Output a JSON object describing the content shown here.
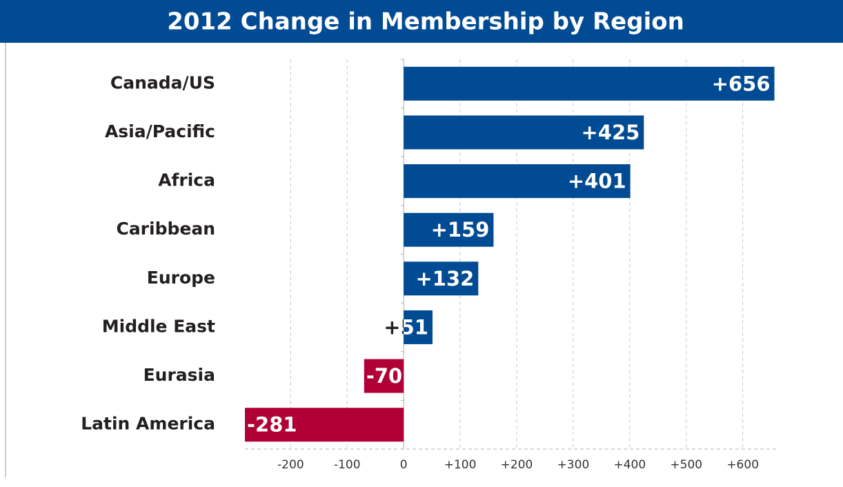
{
  "chart_data": {
    "type": "barh",
    "title": "2012 Change in Membership by Region",
    "categories": [
      "Canada/US",
      "Asia/Pacific",
      "Africa",
      "Caribbean",
      "Europe",
      "Middle East",
      "Eurasia",
      "Latin America"
    ],
    "values": [
      656,
      425,
      401,
      159,
      132,
      51,
      -70,
      -281
    ],
    "value_labels": [
      "+656",
      "+425",
      "+401",
      "+159",
      "+132",
      "+51",
      "-70",
      "-281"
    ],
    "color": "#004b93",
    "negative_color": "#b10035",
    "xlim": [
      -281,
      659
    ],
    "xticks": [
      -200,
      -100,
      0,
      {
        "value": 100,
        "label": "+100"
      },
      {
        "value": 200,
        "label": "+200"
      },
      {
        "value": 300,
        "label": "+300"
      },
      {
        "value": 400,
        "label": "+400"
      },
      {
        "value": 500,
        "label": "+500"
      },
      {
        "value": 600,
        "label": "+600"
      }
    ],
    "grid": true
  }
}
